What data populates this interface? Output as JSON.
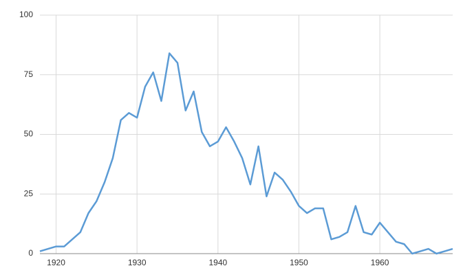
{
  "chart_data": {
    "type": "line",
    "x": [
      1918,
      1919,
      1920,
      1921,
      1922,
      1923,
      1924,
      1925,
      1926,
      1927,
      1928,
      1929,
      1930,
      1931,
      1932,
      1933,
      1934,
      1935,
      1936,
      1937,
      1938,
      1939,
      1940,
      1941,
      1942,
      1943,
      1944,
      1945,
      1946,
      1947,
      1948,
      1949,
      1950,
      1951,
      1952,
      1953,
      1954,
      1955,
      1956,
      1957,
      1958,
      1959,
      1960,
      1961,
      1962,
      1963,
      1964,
      1965,
      1966,
      1967,
      1968,
      1969
    ],
    "series": [
      {
        "color": "#5b9bd5",
        "values": [
          1,
          2,
          3,
          3,
          6,
          9,
          17,
          22,
          30,
          40,
          56,
          59,
          57,
          70,
          76,
          64,
          84,
          80,
          60,
          68,
          51,
          45,
          47,
          53,
          47,
          40,
          29,
          45,
          24,
          34,
          31,
          26,
          20,
          17,
          19,
          19,
          6,
          7,
          9,
          20,
          9,
          8,
          13,
          9,
          5,
          4,
          0,
          1,
          2,
          0,
          1,
          2
        ]
      }
    ],
    "xlim": [
      1918,
      1969
    ],
    "xticks": [
      1920,
      1930,
      1940,
      1950,
      1960
    ],
    "ylim": [
      0,
      100
    ],
    "yticks": [
      0,
      25,
      50,
      75,
      100
    ],
    "grid": true
  }
}
